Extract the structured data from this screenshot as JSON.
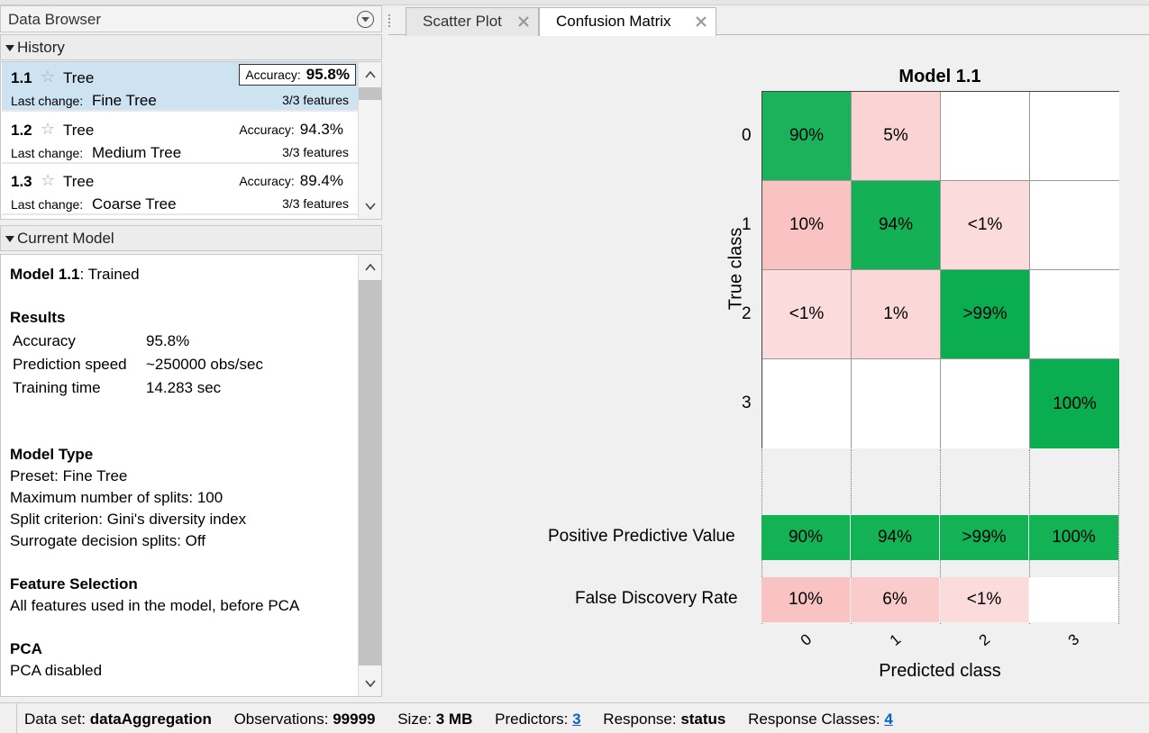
{
  "data_browser": {
    "title": "Data Browser",
    "history_label": "History",
    "current_model_label": "Current Model",
    "history": [
      {
        "num": "1.1",
        "type": "Tree",
        "accuracy_label": "Accuracy:",
        "accuracy": "95.8%",
        "last_change_label": "Last change:",
        "last_change": "Fine Tree",
        "features": "3/3 features"
      },
      {
        "num": "1.2",
        "type": "Tree",
        "accuracy_label": "Accuracy:",
        "accuracy": "94.3%",
        "last_change_label": "Last change:",
        "last_change": "Medium Tree",
        "features": "3/3 features"
      },
      {
        "num": "1.3",
        "type": "Tree",
        "accuracy_label": "Accuracy:",
        "accuracy": "89.4%",
        "last_change_label": "Last change:",
        "last_change": "Coarse Tree",
        "features": "3/3 features"
      }
    ],
    "star_glyph": "☆"
  },
  "current_model": {
    "model_name": "Model 1.1",
    "model_status": ": Trained",
    "results_head": "Results",
    "results": [
      {
        "label": "Accuracy",
        "value": "95.8%"
      },
      {
        "label": "Prediction speed",
        "value": "~250000 obs/sec"
      },
      {
        "label": "Training time",
        "value": "14.283 sec"
      }
    ],
    "model_type_head": "Model Type",
    "model_type_lines": [
      "Preset: Fine Tree",
      "Maximum number of splits: 100",
      "Split criterion: Gini's diversity index",
      "Surrogate decision splits: Off"
    ],
    "feature_head": "Feature Selection",
    "feature_line": "All features used in the model, before PCA",
    "pca_head": "PCA",
    "pca_line": "PCA disabled"
  },
  "tabs": [
    {
      "label": "Scatter Plot",
      "active": false
    },
    {
      "label": "Confusion Matrix",
      "active": true
    }
  ],
  "chart_data": {
    "type": "heatmap",
    "title": "Model 1.1",
    "xlabel": "Predicted class",
    "ylabel": "True class",
    "classes": [
      "0",
      "1",
      "2",
      "3"
    ],
    "matrix": [
      [
        "90%",
        "5%",
        "",
        ""
      ],
      [
        "10%",
        "94%",
        "<1%",
        ""
      ],
      [
        "<1%",
        "1%",
        ">99%",
        ""
      ],
      [
        "",
        "",
        "",
        "100%"
      ]
    ],
    "matrix_shade": [
      [
        0.9,
        0.2,
        0,
        0
      ],
      [
        0.3,
        0.94,
        0.15,
        0
      ],
      [
        0.15,
        0.18,
        1.0,
        0
      ],
      [
        0,
        0,
        0,
        1.0
      ]
    ],
    "ppv_label": "Positive Predictive Value",
    "ppv": [
      "90%",
      "94%",
      ">99%",
      "100%"
    ],
    "fdr_label": "False Discovery Rate",
    "fdr": [
      "10%",
      "6%",
      "<1%",
      ""
    ],
    "fdr_shade": [
      0.3,
      0.25,
      0.15,
      0
    ],
    "colors": {
      "good": "#0aad4f",
      "bad": "#f7b5b5",
      "border": "#555555"
    }
  },
  "status": {
    "dataset_label": "Data set:",
    "dataset": "dataAggregation",
    "obs_label": "Observations:",
    "obs": "99999",
    "size_label": "Size:",
    "size": "3 MB",
    "pred_label": "Predictors:",
    "pred": "3",
    "resp_label": "Response:",
    "resp": "status",
    "rc_label": "Response Classes:",
    "rc": "4"
  }
}
